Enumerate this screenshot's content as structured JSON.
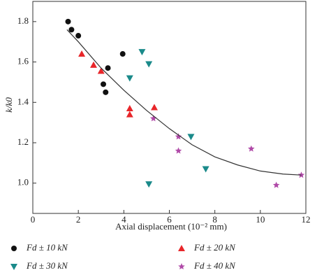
{
  "chart_data": {
    "type": "scatter",
    "x_label": "Axial displacement (10⁻² mm)",
    "y_label": "k/k0",
    "xlim": [
      0,
      12
    ],
    "xticks": [
      0,
      2,
      4,
      6,
      8,
      10,
      12
    ],
    "ylim": [
      0.85,
      1.9
    ],
    "yticks": [
      {
        "value": 1,
        "label": "1.0"
      },
      1.2,
      1.4,
      1.6,
      1.8
    ],
    "series": [
      {
        "name": "Fd ± 10 kN",
        "color": "#111111",
        "marker": "circle",
        "x": [
          1.55,
          1.7,
          2.0,
          3.95,
          3.3,
          3.1,
          3.2
        ],
        "values": [
          1.8,
          1.76,
          1.73,
          1.64,
          1.57,
          1.49,
          1.45
        ]
      },
      {
        "name": "Fd ± 20 kN",
        "color": "#e8262a",
        "marker": "triangle-up",
        "x": [
          2.15,
          2.67,
          3.0,
          4.26,
          4.26,
          5.34
        ],
        "values": [
          1.64,
          1.585,
          1.555,
          1.37,
          1.34,
          1.375
        ]
      },
      {
        "name": "Fd ± 30 kN",
        "color": "#1a8a8a",
        "marker": "triangle-down",
        "x": [
          4.8,
          5.1,
          4.26,
          6.95,
          7.6,
          5.1
        ],
        "values": [
          1.65,
          1.59,
          1.52,
          1.23,
          1.07,
          0.995
        ]
      },
      {
        "name": "Fd ± 40 kN",
        "color": "#b04aa8",
        "marker": "star",
        "x": [
          5.3,
          6.4,
          6.4,
          9.6,
          10.7,
          11.8
        ],
        "values": [
          1.32,
          1.23,
          1.16,
          1.17,
          0.99,
          1.04
        ]
      },
      {
        "color": "#333333",
        "marker": "line",
        "x": [
          1.5,
          2,
          3,
          4,
          5,
          6,
          7,
          8,
          9,
          10,
          11,
          11.8
        ],
        "values": [
          1.76,
          1.7,
          1.57,
          1.46,
          1.36,
          1.27,
          1.19,
          1.13,
          1.09,
          1.06,
          1.045,
          1.04
        ]
      }
    ]
  }
}
